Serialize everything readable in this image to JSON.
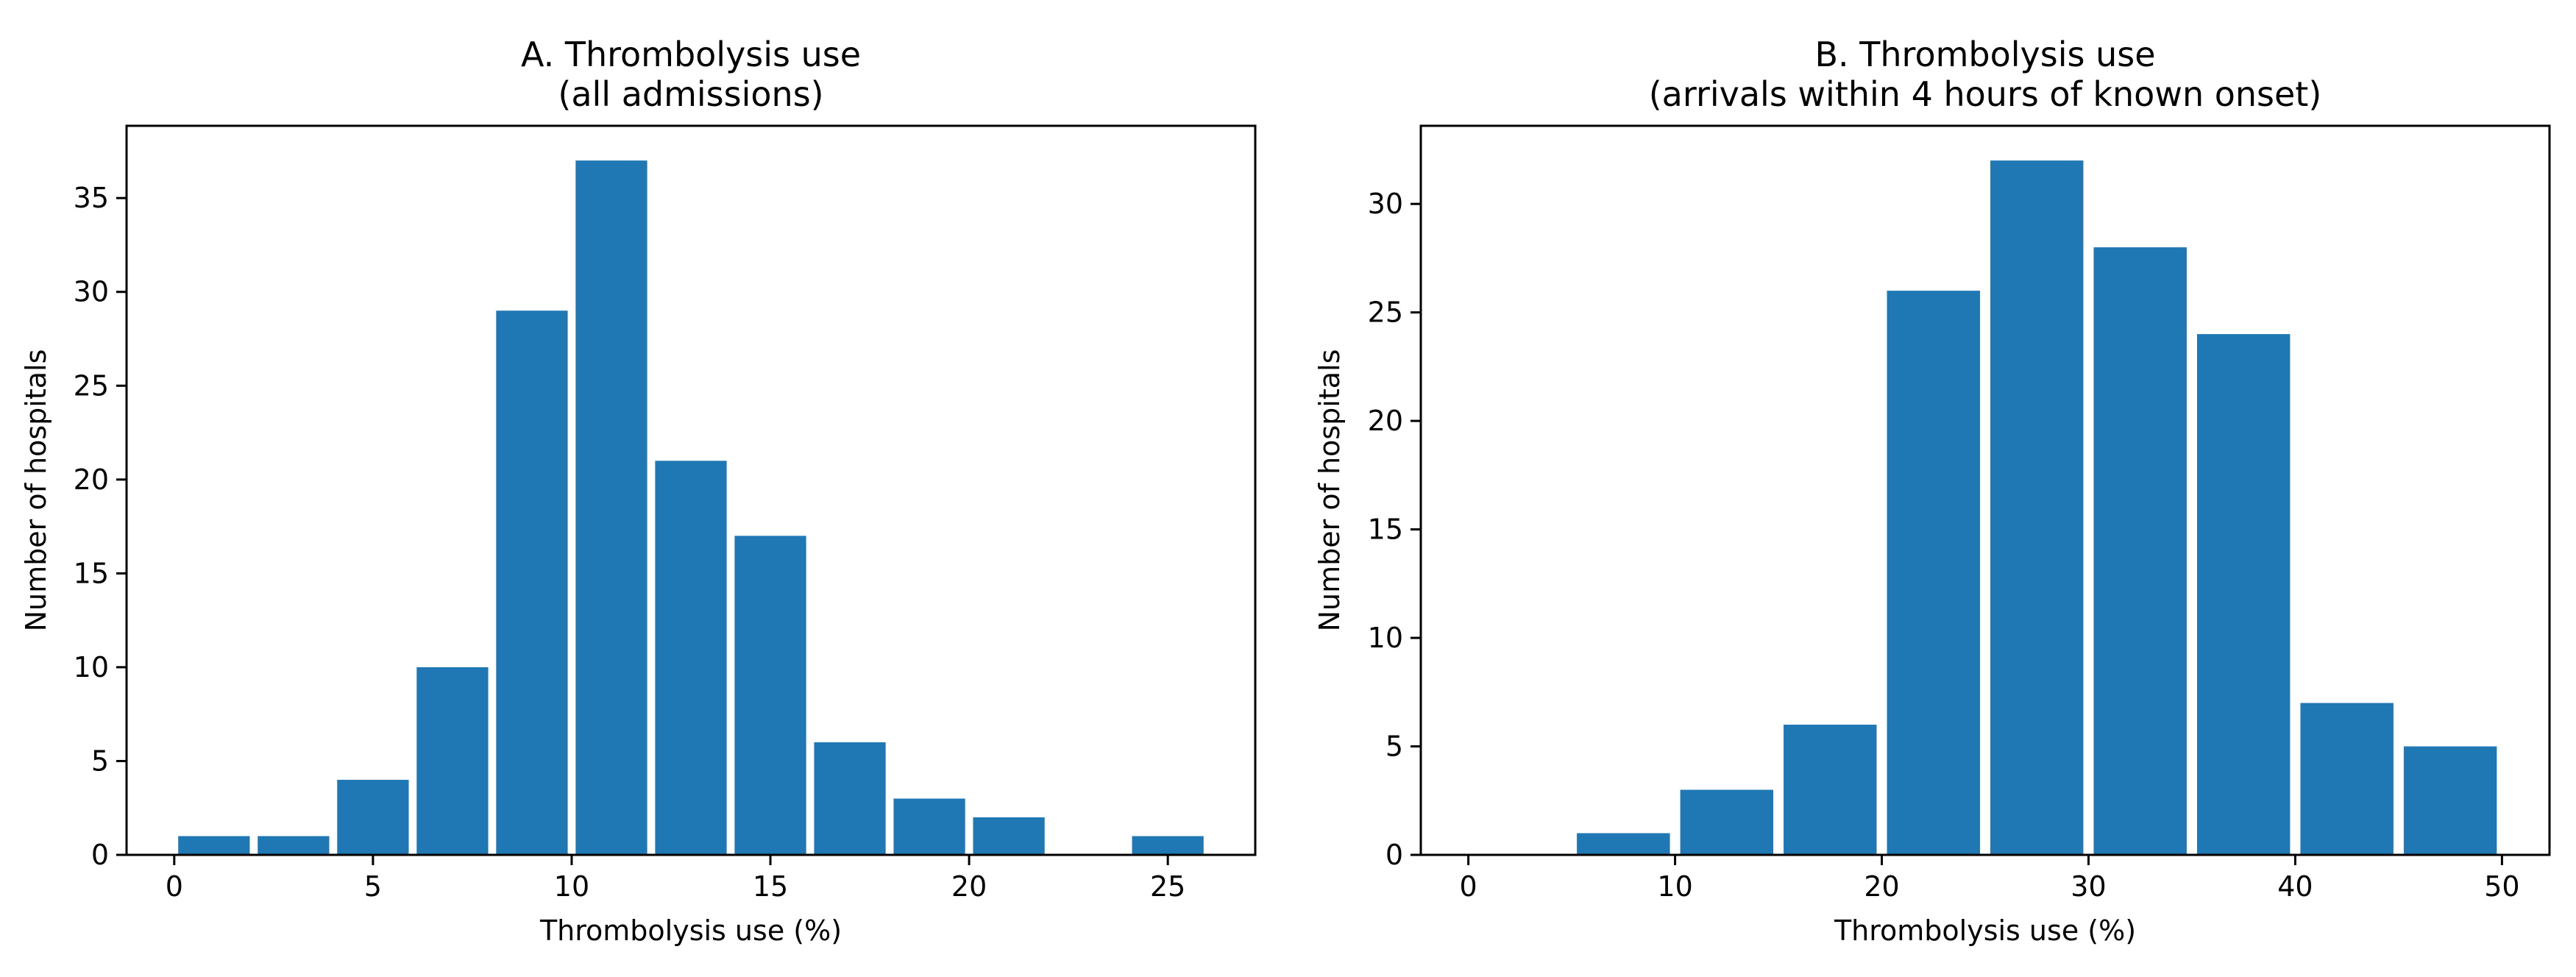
{
  "chart_data": [
    {
      "type": "bar",
      "title": [
        "A. Thrombolysis use",
        "(all admissions)"
      ],
      "xlabel": "Thrombolysis use (%)",
      "ylabel": "Number of hospitals",
      "xlim": [
        -1.2,
        27.2
      ],
      "ylim": [
        0,
        38.85
      ],
      "xticks": [
        0,
        5,
        10,
        15,
        20,
        25
      ],
      "yticks": [
        0,
        5,
        10,
        15,
        20,
        25,
        30,
        35
      ],
      "bin_width": 2,
      "bar_width_fraction": 0.9,
      "bins": [
        {
          "x": 0,
          "value": 1
        },
        {
          "x": 2,
          "value": 1
        },
        {
          "x": 4,
          "value": 4
        },
        {
          "x": 6,
          "value": 10
        },
        {
          "x": 8,
          "value": 29
        },
        {
          "x": 10,
          "value": 37
        },
        {
          "x": 12,
          "value": 21
        },
        {
          "x": 14,
          "value": 17
        },
        {
          "x": 16,
          "value": 6
        },
        {
          "x": 18,
          "value": 3
        },
        {
          "x": 20,
          "value": 2
        },
        {
          "x": 22,
          "value": 0
        },
        {
          "x": 24,
          "value": 1
        }
      ],
      "color": "#1f77b4",
      "grid": false,
      "legend": false
    },
    {
      "type": "bar",
      "title": [
        "B. Thrombolysis use",
        "(arrivals within 4 hours of known onset)"
      ],
      "xlabel": "Thrombolysis use (%)",
      "ylabel": "Number of hospitals",
      "xlim": [
        -2.3,
        52.3
      ],
      "ylim": [
        0,
        33.6
      ],
      "xticks": [
        0,
        10,
        20,
        30,
        40,
        50
      ],
      "yticks": [
        0,
        5,
        10,
        15,
        20,
        25,
        30
      ],
      "bin_width": 5,
      "bar_width_fraction": 0.9,
      "bins": [
        {
          "x": 0,
          "value": 0
        },
        {
          "x": 5,
          "value": 1
        },
        {
          "x": 10,
          "value": 3
        },
        {
          "x": 15,
          "value": 6
        },
        {
          "x": 20,
          "value": 26
        },
        {
          "x": 25,
          "value": 32
        },
        {
          "x": 30,
          "value": 28
        },
        {
          "x": 35,
          "value": 24
        },
        {
          "x": 40,
          "value": 7
        },
        {
          "x": 45,
          "value": 5
        }
      ],
      "color": "#1f77b4",
      "grid": false,
      "legend": false
    }
  ]
}
